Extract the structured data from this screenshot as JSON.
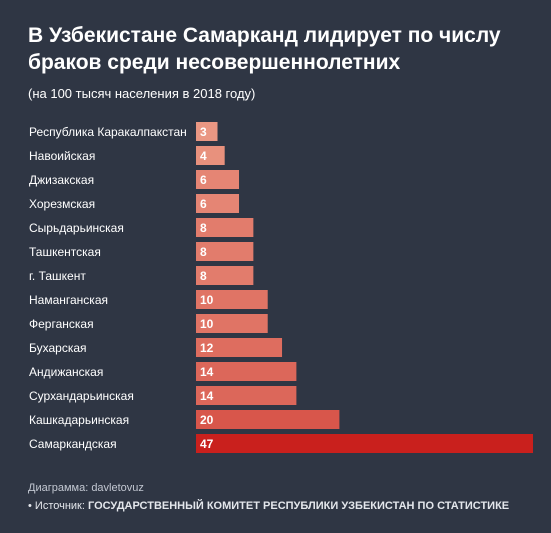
{
  "chart_data": {
    "type": "bar",
    "orientation": "horizontal",
    "title": "В Узбекистане Самарканд лидирует по числу браков среди несовершеннолетних",
    "subtitle": "(на 100 тысяч населения в 2018 году)",
    "categories": [
      "Республика Каракалпакстан",
      "Навоийская",
      "Джизакская",
      "Хорезмская",
      "Сырьдарьинская",
      "Ташкентская",
      "г. Ташкент",
      "Наманганская",
      "Ферганская",
      "Бухарская",
      "Андижанская",
      "Сурхандарьинская",
      "Кашкадарьинская",
      "Самаркандская"
    ],
    "values": [
      3,
      4,
      6,
      6,
      8,
      8,
      8,
      10,
      10,
      12,
      14,
      14,
      20,
      47
    ],
    "xlim": [
      0,
      47
    ],
    "grid": false,
    "legend": "none",
    "colors": {
      "background": "#2f3644",
      "bar_low": "#f7c8ad",
      "bar_high": "#c9201d",
      "text": "#ffffff"
    }
  },
  "footer": {
    "credit": "Диаграмма: davletovuz",
    "source_prefix": "• Источник: ",
    "source_name": "ГОСУДАРСТВЕННЫЙ КОМИТЕТ РЕСПУБЛИКИ УЗБЕКИСТАН ПО СТАТИСТИКЕ"
  }
}
